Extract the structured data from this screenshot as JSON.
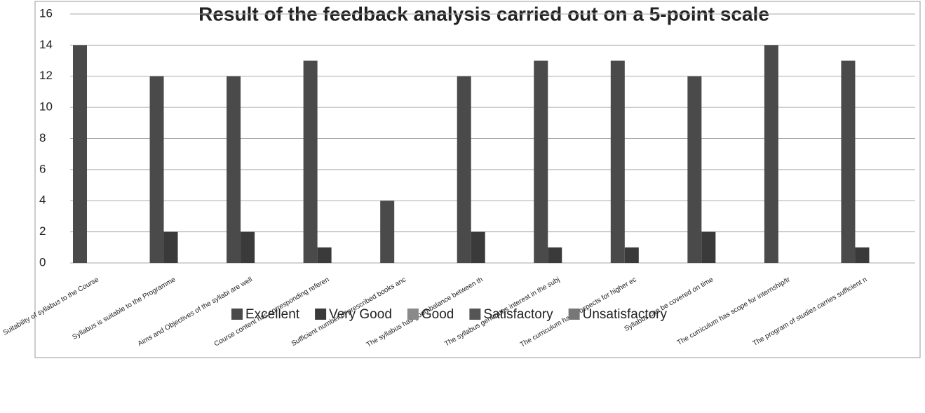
{
  "chart_data": {
    "type": "bar",
    "title": "Result of the feedback analysis carried out on a 5-point scale",
    "categories": [
      "Suitability of syllabus to the Course",
      "Syllabus is suitable to the Programme",
      "Aims and Objectives of the syllabi are well",
      "Course content has corresponding referen",
      "Sufficient number of prescribed books anc",
      "The syllabus has good balance between th",
      "The syllabus generates interest in the subj",
      "The curriculum has prospects for higher ec",
      "Syllabus can be covered on time",
      "The curriculum has scope for internship/tr",
      "The program of studies carries sufficient n"
    ],
    "series": [
      {
        "name": "Excellent",
        "color": "#4a4a4a",
        "values": [
          14,
          12,
          12,
          13,
          4,
          12,
          13,
          13,
          12,
          14,
          13
        ]
      },
      {
        "name": "Very Good",
        "color": "#3a3a3a",
        "values": [
          0,
          2,
          2,
          1,
          0,
          2,
          1,
          1,
          2,
          0,
          1
        ]
      },
      {
        "name": "Good",
        "color": "#8a8a8a",
        "values": [
          0,
          0,
          0,
          0,
          0,
          0,
          0,
          0,
          0,
          0,
          0
        ]
      },
      {
        "name": "Satisfactory",
        "color": "#555555",
        "values": [
          0,
          0,
          0,
          0,
          0,
          0,
          0,
          0,
          0,
          0,
          0
        ]
      },
      {
        "name": "Unsatisfactory",
        "color": "#777777",
        "values": [
          0,
          0,
          0,
          0,
          0,
          0,
          0,
          0,
          0,
          0,
          0
        ]
      }
    ],
    "ylim": [
      0,
      16
    ],
    "yticks": [
      0,
      2,
      4,
      6,
      8,
      10,
      12,
      14,
      16
    ],
    "grid": true,
    "legend": "bottom"
  }
}
